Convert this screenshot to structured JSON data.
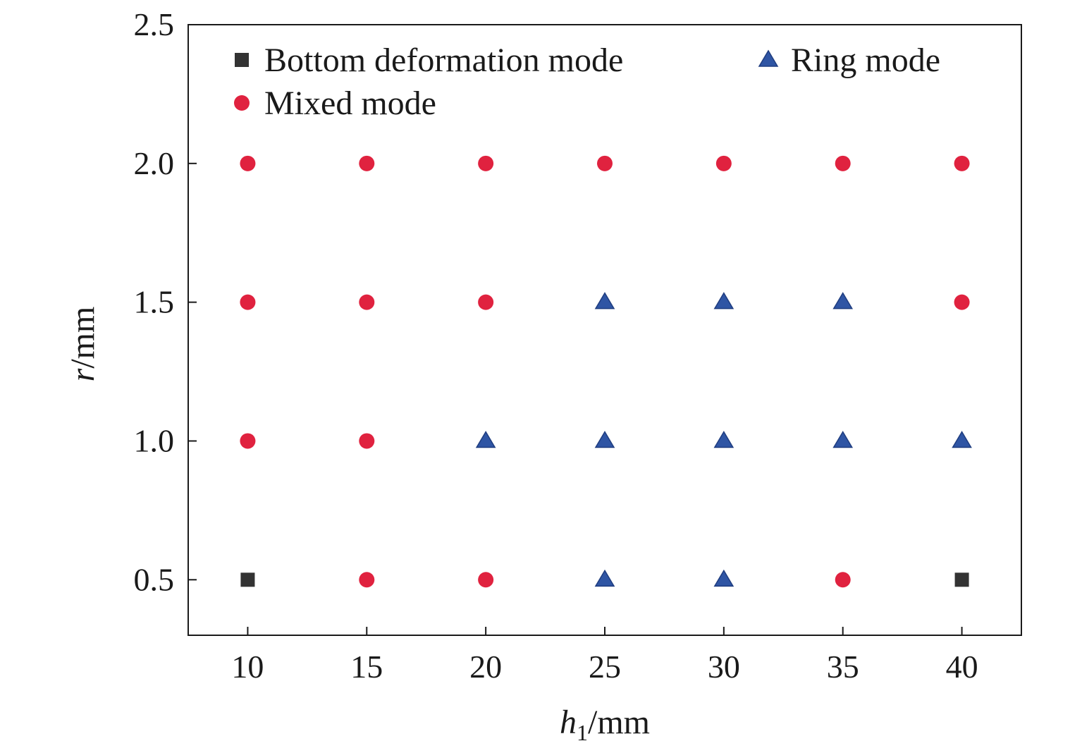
{
  "chart_data": {
    "type": "scatter",
    "xlabel": {
      "main": "h",
      "sub": "1",
      "unit": "/mm"
    },
    "ylabel": {
      "main": "r",
      "unit": "/mm"
    },
    "xlim": [
      7.5,
      42.5
    ],
    "ylim": [
      0.3,
      2.5
    ],
    "xticks": [
      10,
      15,
      20,
      25,
      30,
      35,
      40
    ],
    "yticks": [
      0.5,
      1.0,
      1.5,
      2.0,
      2.5
    ],
    "ytick_labels": [
      "0.5",
      "1.0",
      "1.5",
      "2.0",
      "2.5"
    ],
    "grid": false,
    "legend_position": "top",
    "series": [
      {
        "name": "Bottom deformation mode",
        "marker": "square",
        "color": "#333333",
        "points": [
          [
            10,
            0.5
          ],
          [
            40,
            0.5
          ]
        ]
      },
      {
        "name": "Ring mode",
        "marker": "triangle",
        "color": "#2f55a4",
        "points": [
          [
            25,
            1.5
          ],
          [
            30,
            1.5
          ],
          [
            35,
            1.5
          ],
          [
            20,
            1.0
          ],
          [
            25,
            1.0
          ],
          [
            30,
            1.0
          ],
          [
            35,
            1.0
          ],
          [
            40,
            1.0
          ],
          [
            25,
            0.5
          ],
          [
            30,
            0.5
          ]
        ]
      },
      {
        "name": "Mixed mode",
        "marker": "circle",
        "color": "#e0223f",
        "points": [
          [
            10,
            2.0
          ],
          [
            15,
            2.0
          ],
          [
            20,
            2.0
          ],
          [
            25,
            2.0
          ],
          [
            30,
            2.0
          ],
          [
            35,
            2.0
          ],
          [
            40,
            2.0
          ],
          [
            10,
            1.5
          ],
          [
            15,
            1.5
          ],
          [
            20,
            1.5
          ],
          [
            40,
            1.5
          ],
          [
            10,
            1.0
          ],
          [
            15,
            1.0
          ],
          [
            15,
            0.5
          ],
          [
            20,
            0.5
          ],
          [
            35,
            0.5
          ]
        ]
      }
    ]
  }
}
